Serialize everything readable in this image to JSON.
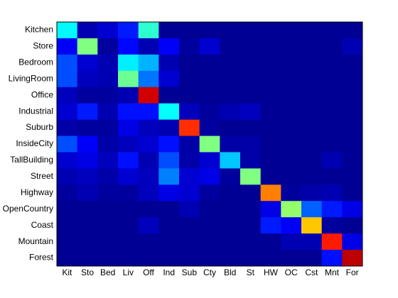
{
  "chart_data": {
    "type": "heatmap",
    "colormap": "jet",
    "clim": [
      0,
      1
    ],
    "x": [
      "Kit",
      "Sto",
      "Bed",
      "Liv",
      "Off",
      "Ind",
      "Sub",
      "Cty",
      "Bld",
      "St",
      "HW",
      "OC",
      "Cst",
      "Mnt",
      "For"
    ],
    "y": [
      "Kitchen",
      "Store",
      "Bedroom",
      "LivingRoom",
      "Office",
      "Industrial",
      "Suburb",
      "InsideCity",
      "TallBuilding",
      "Street",
      "Highway",
      "OpenCountry",
      "Coast",
      "Mountain",
      "Forest"
    ],
    "values": [
      [
        0.37,
        0.05,
        0.08,
        0.15,
        0.42,
        0.02,
        0.02,
        0.02,
        0.02,
        0.02,
        0.02,
        0.02,
        0.02,
        0.02,
        0.02
      ],
      [
        0.12,
        0.5,
        0.03,
        0.13,
        0.05,
        0.12,
        0.03,
        0.08,
        0.02,
        0.02,
        0.02,
        0.02,
        0.02,
        0.02,
        0.05
      ],
      [
        0.2,
        0.08,
        0.05,
        0.36,
        0.3,
        0.05,
        0.02,
        0.02,
        0.02,
        0.02,
        0.02,
        0.02,
        0.02,
        0.02,
        0.02
      ],
      [
        0.2,
        0.06,
        0.05,
        0.48,
        0.24,
        0.08,
        0.02,
        0.02,
        0.02,
        0.02,
        0.02,
        0.02,
        0.02,
        0.02,
        0.02
      ],
      [
        0.06,
        0.03,
        0.03,
        0.05,
        0.92,
        0.02,
        0.02,
        0.02,
        0.02,
        0.02,
        0.02,
        0.02,
        0.02,
        0.02,
        0.02
      ],
      [
        0.08,
        0.15,
        0.05,
        0.14,
        0.14,
        0.38,
        0.06,
        0.03,
        0.05,
        0.06,
        0.02,
        0.02,
        0.02,
        0.02,
        0.02
      ],
      [
        0.04,
        0.03,
        0.03,
        0.1,
        0.06,
        0.05,
        0.83,
        0.03,
        0.02,
        0.02,
        0.02,
        0.02,
        0.02,
        0.02,
        0.02
      ],
      [
        0.2,
        0.12,
        0.04,
        0.06,
        0.08,
        0.14,
        0.04,
        0.5,
        0.04,
        0.04,
        0.02,
        0.02,
        0.02,
        0.02,
        0.02
      ],
      [
        0.08,
        0.1,
        0.06,
        0.14,
        0.05,
        0.2,
        0.04,
        0.08,
        0.32,
        0.04,
        0.02,
        0.02,
        0.02,
        0.05,
        0.02
      ],
      [
        0.05,
        0.06,
        0.04,
        0.08,
        0.06,
        0.25,
        0.08,
        0.1,
        0.03,
        0.5,
        0.02,
        0.02,
        0.02,
        0.02,
        0.02
      ],
      [
        0.03,
        0.05,
        0.03,
        0.03,
        0.06,
        0.1,
        0.08,
        0.03,
        0.02,
        0.02,
        0.75,
        0.03,
        0.04,
        0.05,
        0.02
      ],
      [
        0.02,
        0.02,
        0.02,
        0.02,
        0.02,
        0.02,
        0.05,
        0.02,
        0.02,
        0.02,
        0.1,
        0.52,
        0.22,
        0.15,
        0.1
      ],
      [
        0.02,
        0.02,
        0.02,
        0.02,
        0.06,
        0.02,
        0.02,
        0.02,
        0.02,
        0.02,
        0.15,
        0.12,
        0.68,
        0.03,
        0.02
      ],
      [
        0.02,
        0.02,
        0.02,
        0.02,
        0.02,
        0.02,
        0.02,
        0.02,
        0.02,
        0.02,
        0.02,
        0.05,
        0.05,
        0.85,
        0.1
      ],
      [
        0.02,
        0.02,
        0.02,
        0.02,
        0.02,
        0.02,
        0.02,
        0.02,
        0.02,
        0.02,
        0.02,
        0.02,
        0.02,
        0.14,
        0.94
      ]
    ]
  }
}
